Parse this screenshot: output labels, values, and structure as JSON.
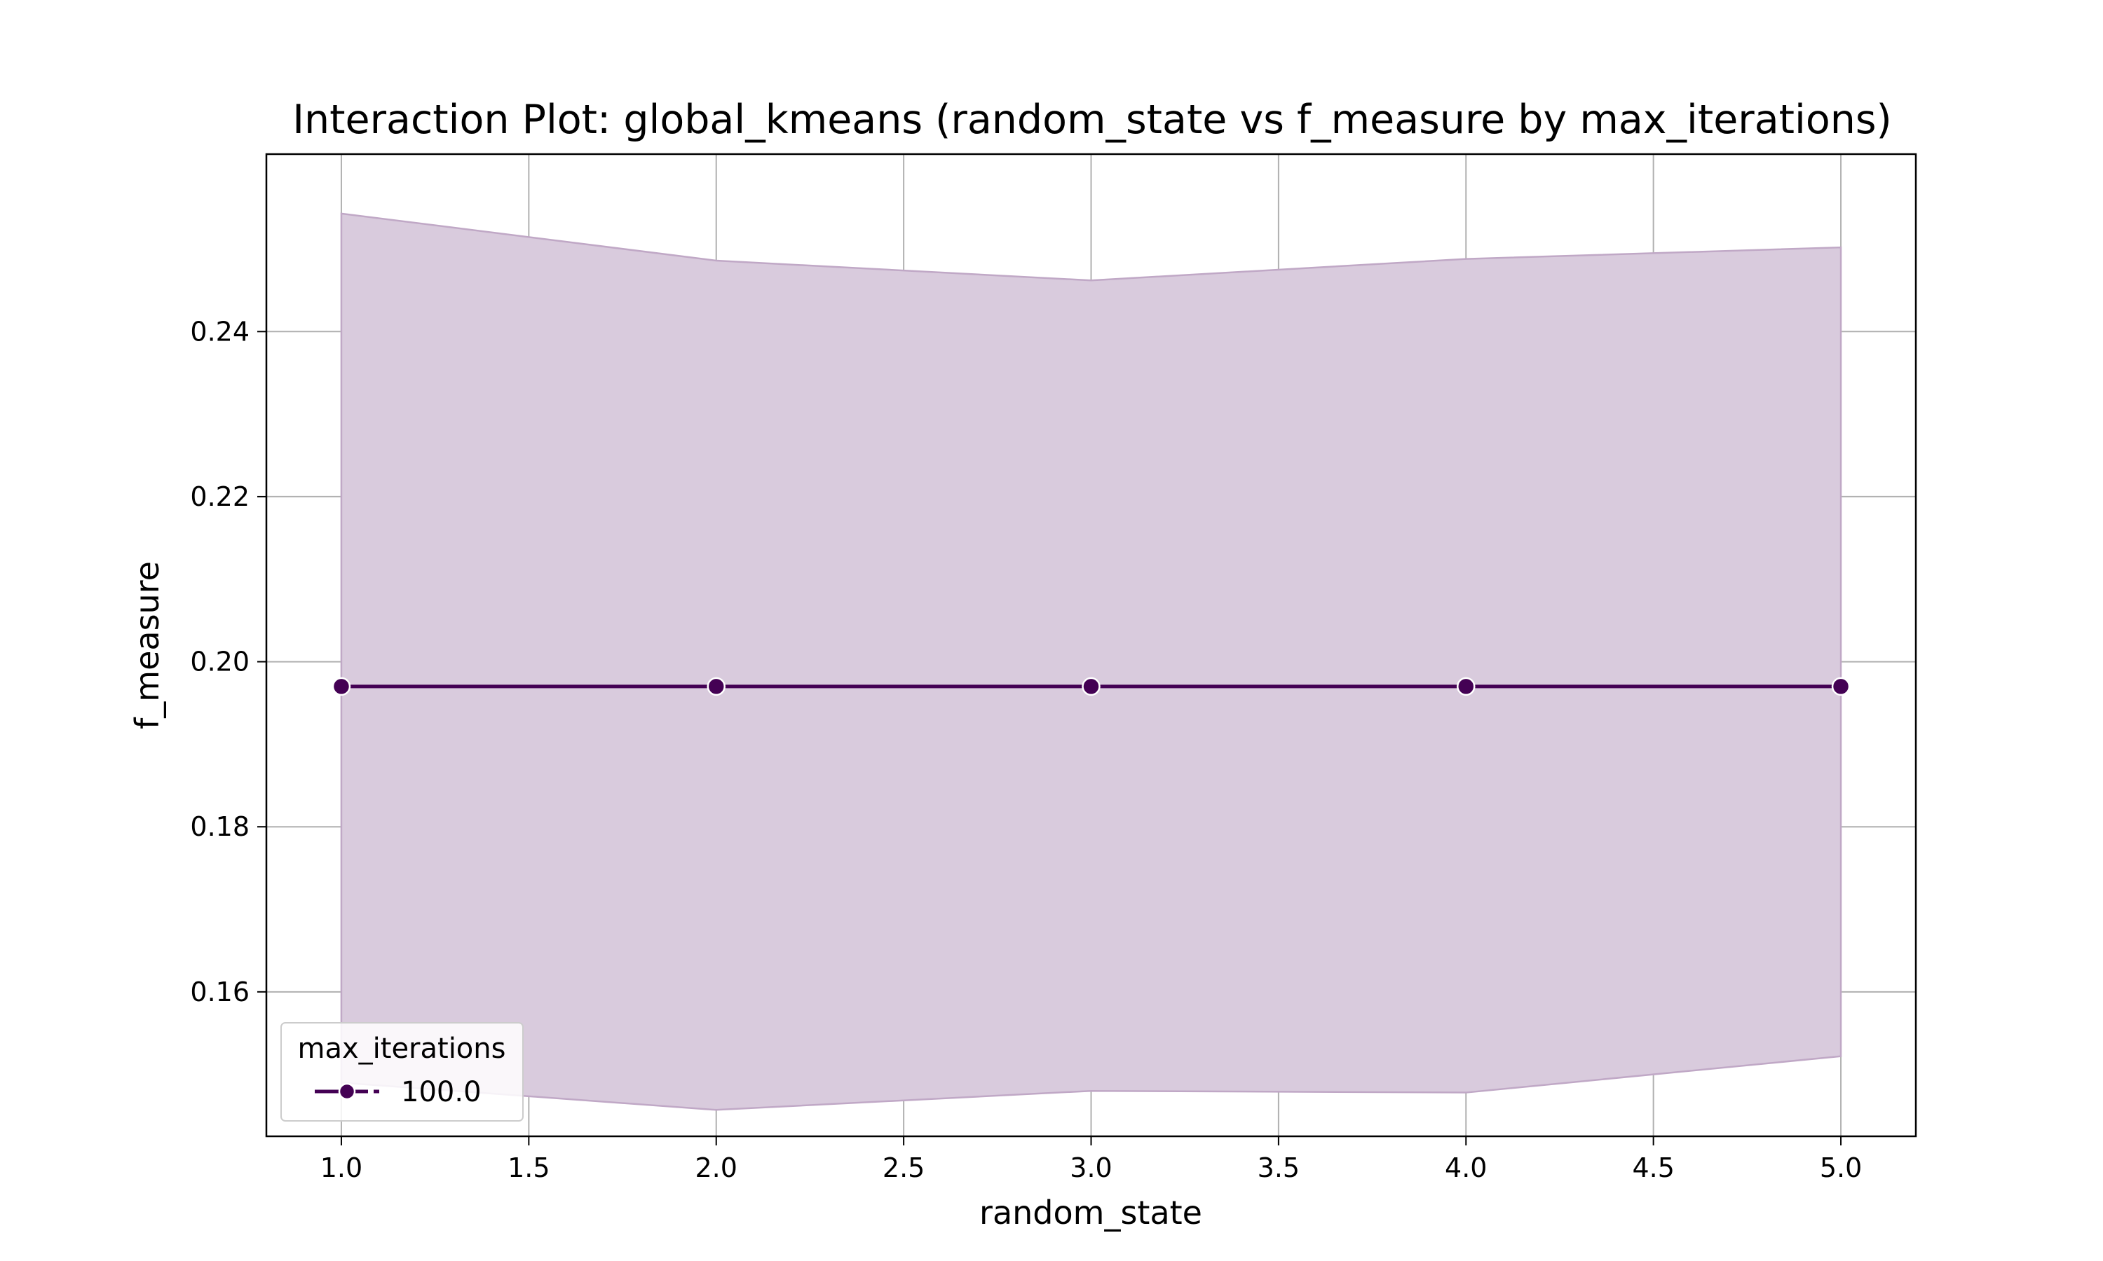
{
  "chart_data": {
    "type": "line",
    "title": "Interaction Plot: global_kmeans (random_state vs f_measure by max_iterations)",
    "xlabel": "random_state",
    "ylabel": "f_measure",
    "xlim": [
      0.8,
      5.2
    ],
    "ylim": [
      0.1425,
      0.2615
    ],
    "x_ticks": [
      1.0,
      1.5,
      2.0,
      2.5,
      3.0,
      3.5,
      4.0,
      4.5,
      5.0
    ],
    "x_tick_labels": [
      "1.0",
      "1.5",
      "2.0",
      "2.5",
      "3.0",
      "3.5",
      "4.0",
      "4.5",
      "5.0"
    ],
    "y_ticks": [
      0.16,
      0.18,
      0.2,
      0.22,
      0.24
    ],
    "y_tick_labels": [
      "0.16",
      "0.18",
      "0.20",
      "0.22",
      "0.24"
    ],
    "grid": true,
    "legend": {
      "title": "max_iterations",
      "placement": "lower-left"
    },
    "series": [
      {
        "name": "100.0",
        "color": "#440154",
        "band_color": "#d9cbdd",
        "x": [
          1.0,
          2.0,
          3.0,
          4.0,
          5.0
        ],
        "y": [
          0.197,
          0.197,
          0.197,
          0.197,
          0.197
        ],
        "ci_upper": [
          0.2543,
          0.2486,
          0.2462,
          0.2488,
          0.2502
        ],
        "ci_lower": [
          0.149,
          0.1457,
          0.148,
          0.1478,
          0.1522
        ]
      }
    ]
  }
}
